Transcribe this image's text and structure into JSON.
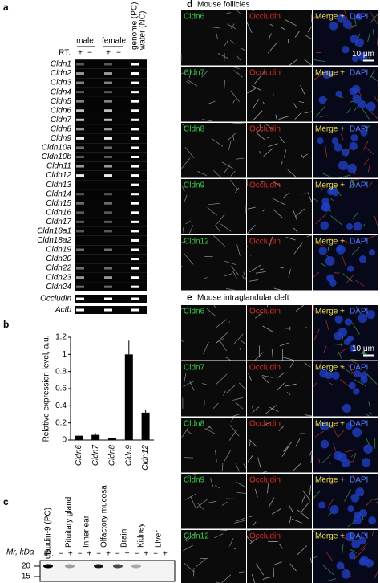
{
  "panel_a": {
    "label": "a",
    "groups": [
      "male",
      "female"
    ],
    "lanes": [
      "genome (PC)",
      "water (NC)"
    ],
    "rt_label": "RT:",
    "rt": [
      "+",
      "−",
      "+",
      "−"
    ],
    "genes": [
      "Cldn1",
      "Cldn2",
      "Cldn3",
      "Cldn4",
      "Cldn5",
      "Cldn6",
      "Cldn7",
      "Cldn8",
      "Cldn9",
      "Cldn10a",
      "Cldn10b",
      "Cldn11",
      "Cldn12",
      "Cldn13",
      "Cldn14",
      "Cldn15",
      "Cldn16",
      "Cldn17",
      "Cldn18a1",
      "Cldn18a2",
      "Cldn19",
      "Cldn20",
      "Cldn22",
      "Cldn23",
      "Cldn24",
      "Occludin",
      "Actb"
    ]
  },
  "chart_data": {
    "type": "bar",
    "panel_label": "b",
    "ylabel": "Relative expression level, a.u.",
    "categories": [
      "Cldn6",
      "Cldn7",
      "Cldn8",
      "Cldn9",
      "Cldn12"
    ],
    "values": [
      0.05,
      0.06,
      0.02,
      1.0,
      0.32
    ],
    "errors": [
      0.01,
      0.02,
      0.005,
      0.16,
      0.03
    ],
    "color": "#000000",
    "ylim": [
      0,
      1.2
    ],
    "yticks": [
      0,
      0.2,
      0.4,
      0.6,
      0.8,
      1,
      1.2
    ]
  },
  "panel_c": {
    "label": "c",
    "mr_label": "Mr, kDa",
    "markers": [
      20,
      15
    ],
    "ip_label": "IP:",
    "lanes": [
      "claudin-9 (PC)",
      "Pituitary gland",
      "Inner ear",
      "Olfactory mucosa",
      "Brain",
      "Kidney",
      "Liver"
    ],
    "ip": [
      "−",
      "+",
      "−",
      "+",
      "−",
      "+",
      "−",
      "+",
      "−",
      "+",
      "−",
      "+"
    ]
  },
  "panel_d": {
    "label": "d",
    "title": "Mouse follicles",
    "rows": [
      "Cldn6",
      "Cldn7",
      "Cldn8",
      "Cldn9",
      "Cldn12"
    ],
    "occludin": "Occludin",
    "merge": "Merge +",
    "dapi": "DAPI",
    "scale": "10 μm"
  },
  "panel_e": {
    "label": "e",
    "title": "Mouse intraglandular cleft",
    "rows": [
      "Cldn6",
      "Cldn7",
      "Cldn8",
      "Cldn9",
      "Cldn12"
    ],
    "occludin": "Occludin",
    "merge": "Merge +",
    "dapi": "DAPI",
    "scale": "10 μm"
  }
}
